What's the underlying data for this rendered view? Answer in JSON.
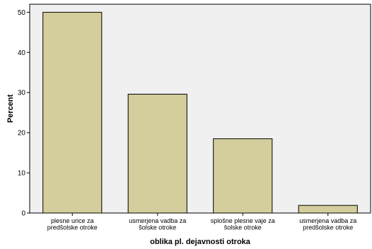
{
  "chart_data": {
    "type": "bar",
    "categories": [
      [
        "plesne urice za",
        "predšolske otroke"
      ],
      [
        "usmerjena vadba za",
        "šolske otroke"
      ],
      [
        "splošne plesne vaje za",
        "šolske otroke"
      ],
      [
        "usmerjena vadba za",
        "predšolske otroke"
      ]
    ],
    "values": [
      50.0,
      29.6,
      18.5,
      1.9
    ],
    "xlabel": "oblika pl. dejavnosti otroka",
    "ylabel": "Percent",
    "ylim": [
      0,
      52
    ],
    "yticks": [
      0,
      10,
      20,
      30,
      40,
      50
    ],
    "grid": false,
    "colors": {
      "bar_fill": "#d3ce9c",
      "bar_stroke": "#000000",
      "plot_bg": "#f0f0f0"
    }
  }
}
